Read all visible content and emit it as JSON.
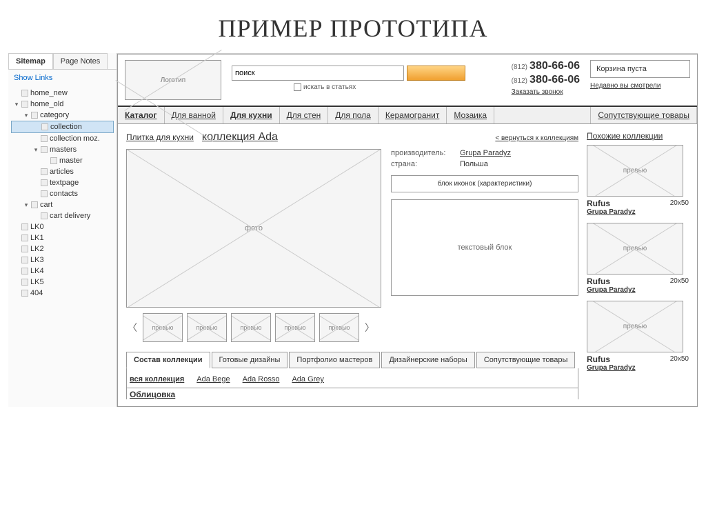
{
  "slide_title": "ПРИМЕР ПРОТОТИПА",
  "sidebar": {
    "tabs": [
      "Sitemap",
      "Page Notes"
    ],
    "active_tab": 0,
    "show_links": "Show Links",
    "tree": [
      {
        "label": "home_new",
        "depth": 0
      },
      {
        "label": "home_old",
        "depth": 0,
        "expanded": true
      },
      {
        "label": "category",
        "depth": 1,
        "expanded": true
      },
      {
        "label": "collection",
        "depth": 2,
        "selected": true
      },
      {
        "label": "collection moz.",
        "depth": 2
      },
      {
        "label": "masters",
        "depth": 2,
        "expanded": true
      },
      {
        "label": "master",
        "depth": 3
      },
      {
        "label": "articles",
        "depth": 2
      },
      {
        "label": "textpage",
        "depth": 2
      },
      {
        "label": "contacts",
        "depth": 2
      },
      {
        "label": "cart",
        "depth": 1,
        "expanded": true
      },
      {
        "label": "cart delivery",
        "depth": 2
      },
      {
        "label": "LK0",
        "depth": 0
      },
      {
        "label": "LK1",
        "depth": 0
      },
      {
        "label": "LK2",
        "depth": 0
      },
      {
        "label": "LK3",
        "depth": 0
      },
      {
        "label": "LK4",
        "depth": 0
      },
      {
        "label": "LK5",
        "depth": 0
      },
      {
        "label": "404",
        "depth": 0
      }
    ]
  },
  "header": {
    "logo": "Логотип",
    "search_value": "поиск",
    "search_checkbox": "искать в статьях",
    "phone1_code": "(812)",
    "phone1_num": "380-66-06",
    "phone2_code": "(812)",
    "phone2_num": "380-66-06",
    "callback": "Заказать звонок",
    "cart_empty": "Корзина пуста",
    "recent": "Недавно вы смотрели"
  },
  "nav": {
    "items": [
      "Каталог",
      "Для ванной",
      "Для кухни",
      "Для стен",
      "Для пола",
      "Керамогранит",
      "Мозаика"
    ],
    "bold_idx": [
      0,
      2
    ],
    "last": "Сопутствующие товары"
  },
  "breadcrumb": {
    "cat": "Плитка для кухни",
    "title": "коллекция Ada",
    "back": "< вернуться к коллекциям"
  },
  "product": {
    "photo_label": "фото",
    "thumb_label": "превью",
    "info": [
      {
        "label": "производитель:",
        "value": "Grupa Paradyz",
        "link": true
      },
      {
        "label": "страна:",
        "value": "Польша",
        "link": false
      }
    ],
    "icons_block": "блок иконок (характеристики)",
    "text_block": "текстовый блок"
  },
  "content_tabs": [
    "Состав коллекции",
    "Готовые дизайны",
    "Портфолио мастеров",
    "Дизайнерские наборы",
    "Сопутствующие товары"
  ],
  "filters": [
    "вся коллекция",
    "Ada Bege",
    "Ada Rosso",
    "Ada Grey"
  ],
  "section_label": "Облицовка",
  "similar": {
    "title": "Похожие коллекции",
    "thumb_label": "превью",
    "items": [
      {
        "name": "Rufus",
        "size": "20x50",
        "brand": "Grupa Paradyz"
      },
      {
        "name": "Rufus",
        "size": "20x50",
        "brand": "Grupa Paradyz"
      },
      {
        "name": "Rufus",
        "size": "20x50",
        "brand": "Grupa Paradyz"
      }
    ]
  },
  "colors": {
    "accent_btn": "#f5a843",
    "border": "#999999",
    "link": "#0066cc"
  }
}
